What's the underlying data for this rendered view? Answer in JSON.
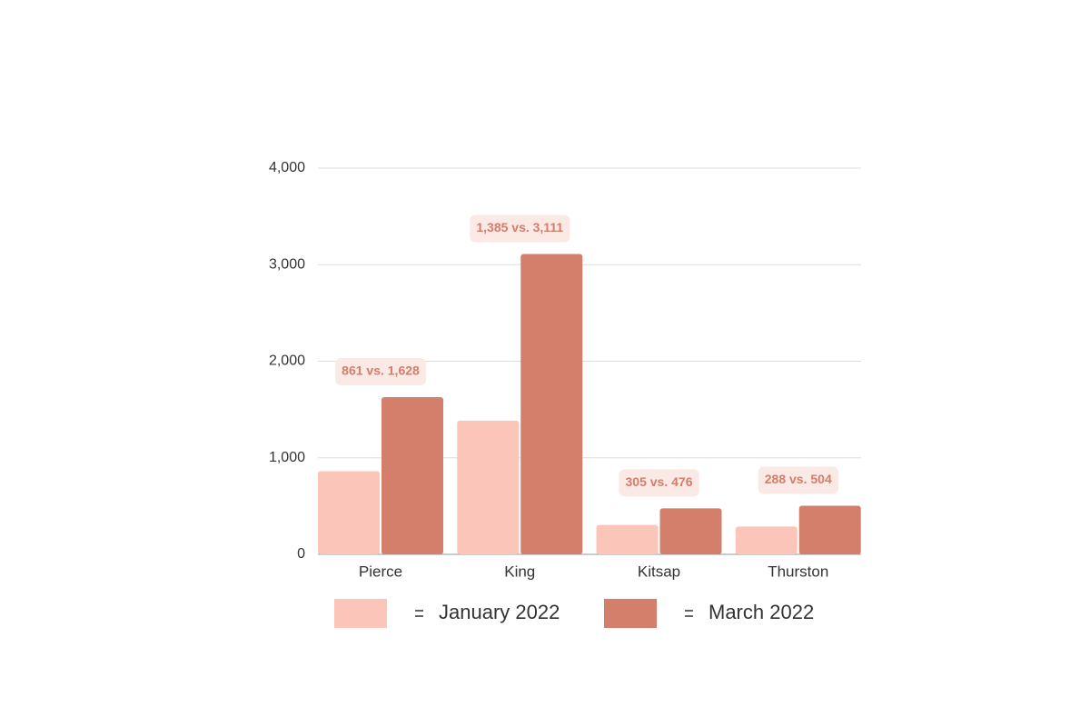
{
  "chart_data": {
    "type": "bar",
    "categories": [
      "Pierce",
      "King",
      "Kitsap",
      "Thurston"
    ],
    "series": [
      {
        "name": "January 2022",
        "color": "#fcc5b9",
        "values": [
          861,
          1385,
          305,
          288
        ]
      },
      {
        "name": "March 2022",
        "color": "#d47f6c",
        "values": [
          1628,
          3111,
          476,
          504
        ]
      }
    ],
    "annotations": [
      "861 vs. 1,628",
      "1,385 vs. 3,111",
      "305 vs. 476",
      "288 vs. 504"
    ],
    "ylim": [
      0,
      4000
    ],
    "yticks": [
      0,
      {
        "value": 1000,
        "label": "1,000"
      },
      {
        "value": 2000,
        "label": "2,000"
      },
      {
        "value": 3000,
        "label": "3,000"
      },
      {
        "value": 4000,
        "label": "4,000"
      }
    ],
    "grid": true
  }
}
